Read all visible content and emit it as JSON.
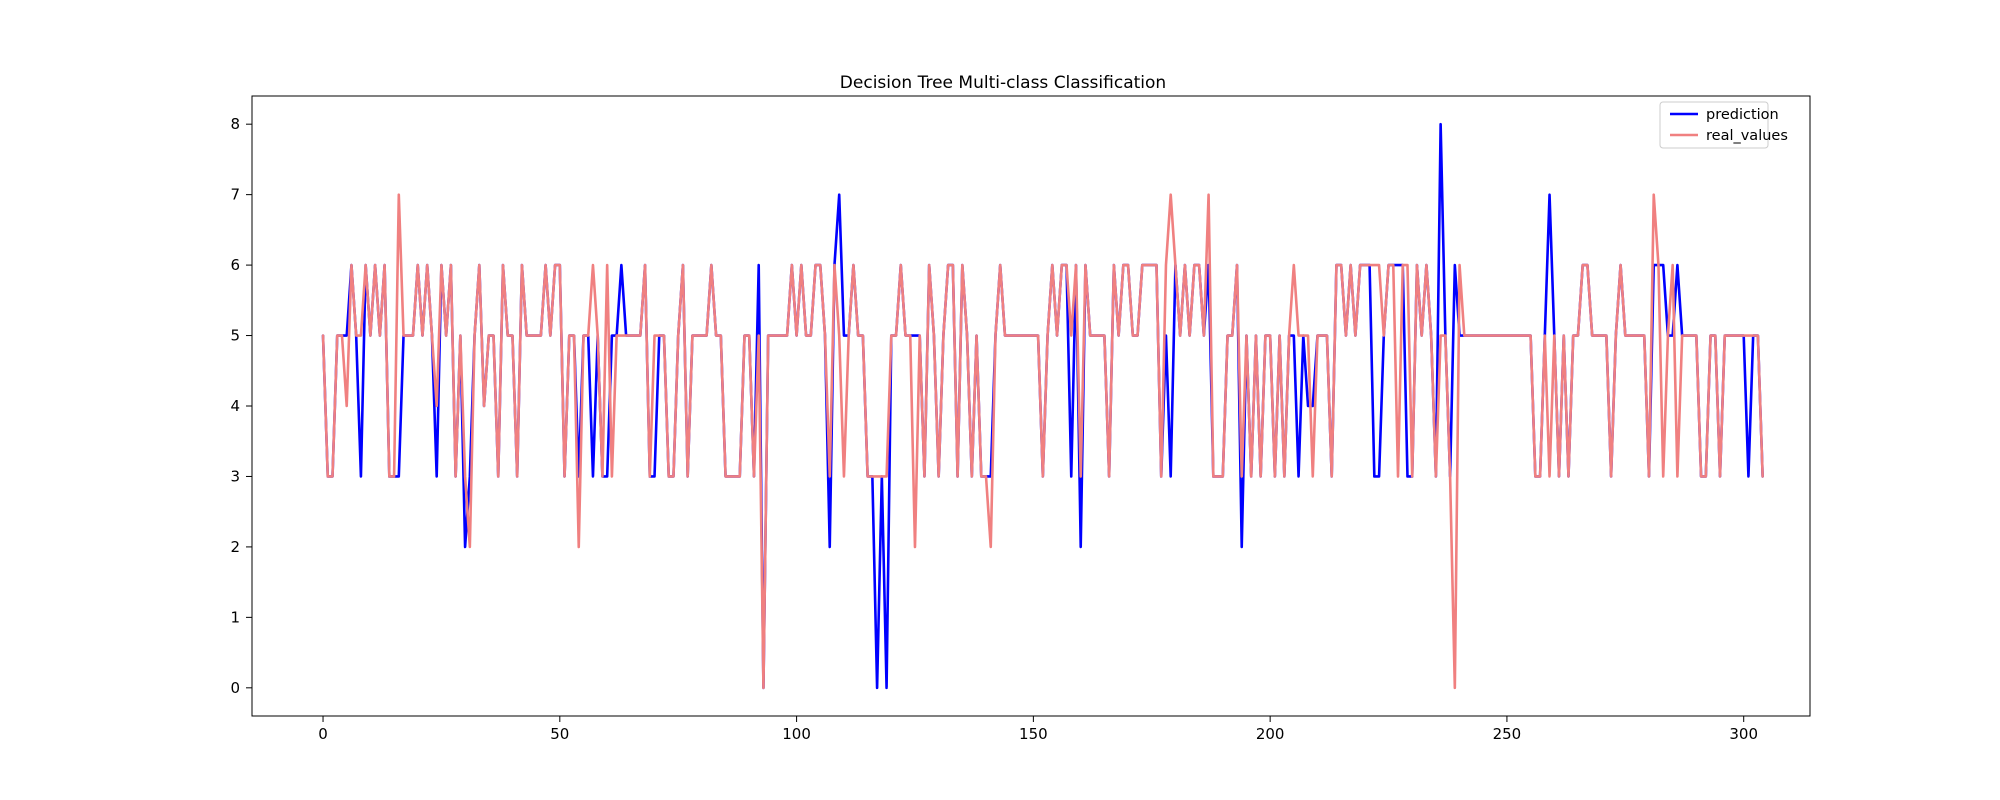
{
  "chart_data": {
    "type": "line",
    "title": "Decision Tree Multi-class Classification",
    "xlabel": "",
    "ylabel": "",
    "xlim": [
      -15,
      314
    ],
    "ylim": [
      -0.4,
      8.4
    ],
    "x_ticks": [
      0,
      50,
      100,
      150,
      200,
      250,
      300
    ],
    "y_ticks": [
      0,
      1,
      2,
      3,
      4,
      5,
      6,
      7,
      8
    ],
    "grid": false,
    "legend_position": "top-right",
    "colors": {
      "prediction": "#0000ff",
      "real_values": "#f08080"
    },
    "series": [
      {
        "name": "prediction",
        "color": "#0000ff",
        "values": [
          5,
          3,
          3,
          5,
          5,
          5,
          6,
          5,
          3,
          6,
          5,
          6,
          5,
          6,
          3,
          3,
          3,
          5,
          5,
          5,
          6,
          5,
          6,
          5,
          3,
          6,
          5,
          6,
          3,
          5,
          2,
          3,
          5,
          6,
          4,
          5,
          5,
          3,
          6,
          5,
          5,
          3,
          6,
          5,
          5,
          5,
          5,
          6,
          5,
          6,
          6,
          3,
          5,
          5,
          3,
          5,
          5,
          3,
          5,
          3,
          3,
          5,
          5,
          6,
          5,
          5,
          5,
          5,
          6,
          3,
          3,
          5,
          5,
          3,
          3,
          5,
          6,
          3,
          5,
          5,
          5,
          5,
          6,
          5,
          5,
          3,
          3,
          3,
          3,
          5,
          5,
          3,
          6,
          0,
          5,
          5,
          5,
          5,
          5,
          6,
          5,
          6,
          5,
          5,
          6,
          6,
          5,
          2,
          6,
          7,
          5,
          5,
          6,
          5,
          5,
          3,
          3,
          0,
          3,
          0,
          5,
          5,
          6,
          5,
          5,
          5,
          5,
          3,
          6,
          5,
          3,
          5,
          6,
          6,
          3,
          6,
          5,
          3,
          5,
          3,
          3,
          3,
          5,
          6,
          5,
          5,
          5,
          5,
          5,
          5,
          5,
          5,
          3,
          5,
          6,
          5,
          6,
          6,
          3,
          6,
          2,
          6,
          5,
          5,
          5,
          5,
          3,
          6,
          5,
          6,
          6,
          5,
          5,
          6,
          6,
          6,
          6,
          3,
          5,
          3,
          6,
          5,
          6,
          5,
          6,
          6,
          5,
          6,
          3,
          3,
          3,
          5,
          5,
          6,
          2,
          5,
          3,
          5,
          3,
          5,
          5,
          3,
          5,
          3,
          5,
          5,
          3,
          5,
          4,
          4,
          5,
          5,
          5,
          3,
          6,
          6,
          5,
          6,
          5,
          6,
          6,
          6,
          3,
          3,
          5,
          6,
          6,
          6,
          6,
          3,
          3,
          6,
          5,
          6,
          5,
          3,
          8,
          5,
          3,
          6,
          5,
          5,
          5,
          5,
          5,
          5,
          5,
          5,
          5,
          5,
          5,
          5,
          5,
          5,
          5,
          5,
          3,
          3,
          5,
          7,
          5,
          3,
          5,
          3,
          5,
          5,
          6,
          6,
          5,
          5,
          5,
          5,
          3,
          5,
          6,
          5,
          5,
          5,
          5,
          5,
          3,
          6,
          6,
          6,
          5,
          5,
          6,
          5,
          5,
          5,
          5,
          3,
          3,
          5,
          5,
          3,
          5,
          5,
          5,
          5,
          5,
          3,
          5,
          5,
          3
        ]
      },
      {
        "name": "real_values",
        "color": "#f08080",
        "values": [
          5,
          3,
          3,
          5,
          5,
          4,
          6,
          5,
          5,
          6,
          5,
          6,
          5,
          6,
          3,
          3,
          7,
          5,
          5,
          5,
          6,
          5,
          6,
          5,
          4,
          6,
          5,
          6,
          3,
          5,
          3,
          2,
          5,
          6,
          4,
          5,
          5,
          3,
          6,
          5,
          5,
          3,
          6,
          5,
          5,
          5,
          5,
          6,
          5,
          6,
          6,
          3,
          5,
          5,
          2,
          5,
          5,
          6,
          5,
          3,
          6,
          3,
          5,
          5,
          5,
          5,
          5,
          5,
          6,
          3,
          5,
          5,
          5,
          3,
          3,
          5,
          6,
          3,
          5,
          5,
          5,
          5,
          6,
          5,
          5,
          3,
          3,
          3,
          3,
          5,
          5,
          3,
          5,
          0,
          5,
          5,
          5,
          5,
          5,
          6,
          5,
          6,
          5,
          5,
          6,
          6,
          5,
          3,
          6,
          5,
          3,
          5,
          6,
          5,
          5,
          3,
          3,
          3,
          3,
          3,
          5,
          5,
          6,
          5,
          5,
          2,
          5,
          3,
          6,
          5,
          3,
          5,
          6,
          6,
          3,
          6,
          5,
          3,
          5,
          3,
          3,
          2,
          5,
          6,
          5,
          5,
          5,
          5,
          5,
          5,
          5,
          5,
          3,
          5,
          6,
          5,
          6,
          6,
          5,
          6,
          3,
          6,
          5,
          5,
          5,
          5,
          3,
          6,
          5,
          6,
          6,
          5,
          5,
          6,
          6,
          6,
          6,
          3,
          6,
          7,
          6,
          5,
          6,
          5,
          6,
          6,
          5,
          7,
          3,
          3,
          3,
          5,
          5,
          6,
          3,
          5,
          3,
          5,
          3,
          5,
          5,
          3,
          5,
          3,
          5,
          6,
          5,
          5,
          5,
          3,
          5,
          5,
          5,
          3,
          6,
          6,
          5,
          6,
          5,
          6,
          6,
          6,
          6,
          6,
          5,
          6,
          6,
          3,
          6,
          6,
          3,
          6,
          5,
          6,
          5,
          3,
          5,
          5,
          3,
          0,
          6,
          5,
          5,
          5,
          5,
          5,
          5,
          5,
          5,
          5,
          5,
          5,
          5,
          5,
          5,
          5,
          3,
          3,
          5,
          3,
          5,
          3,
          5,
          3,
          5,
          5,
          6,
          6,
          5,
          5,
          5,
          5,
          3,
          5,
          6,
          5,
          5,
          5,
          5,
          5,
          3,
          7,
          6,
          3,
          5,
          6,
          3,
          5,
          5,
          5,
          5,
          3,
          3,
          5,
          5,
          3,
          5,
          5,
          5,
          5,
          5,
          5,
          5,
          5,
          3
        ]
      }
    ]
  }
}
